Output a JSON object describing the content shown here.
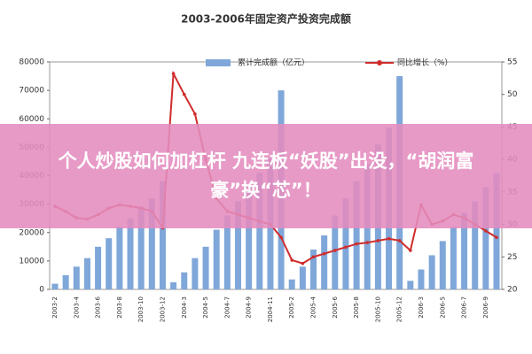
{
  "chart_data": {
    "type": "bar-line",
    "title": "2003-2006年固定资产投资完成额",
    "categories": [
      "2003-2",
      null,
      "2003-4",
      null,
      "2003-6",
      null,
      "2003-8",
      null,
      "2003-10",
      null,
      "2003-12",
      null,
      "2004-3",
      null,
      "2004-5",
      null,
      "2004-7",
      null,
      "2004-9",
      null,
      "2004-11",
      null,
      "2005-2",
      null,
      "2005-4",
      null,
      "2005-6",
      null,
      "2005-8",
      null,
      "2005-10",
      null,
      "2005-12",
      null,
      "2006-3",
      null,
      "2006-5",
      null,
      "2006-7",
      null,
      "2006-9",
      null
    ],
    "series": [
      {
        "name": "累计完成额（亿元）",
        "color": "#7fa7d9",
        "type": "bar",
        "values": [
          2000,
          5000,
          8000,
          11000,
          15000,
          18000,
          22000,
          25000,
          29000,
          32000,
          38000,
          2500,
          6000,
          11000,
          15000,
          21000,
          26000,
          31000,
          36000,
          41000,
          46000,
          70000,
          3500,
          8000,
          14000,
          19000,
          26000,
          32000,
          38000,
          44000,
          51000,
          57000,
          75000,
          3000,
          7000,
          12000,
          17000,
          22000,
          27000,
          31000,
          36000,
          41000
        ]
      },
      {
        "name": "同比增长（%）",
        "color": "#d02c2c",
        "type": "line",
        "axis": "y2",
        "values": [
          32.8,
          32,
          31,
          30.8,
          31.5,
          32.5,
          33,
          32.8,
          32.5,
          32,
          29.5,
          53.2,
          50,
          47,
          40,
          34,
          32,
          31.5,
          31,
          30.5,
          30,
          28,
          24.5,
          24,
          25,
          25.5,
          26,
          26.5,
          27,
          27.2,
          27.5,
          27.8,
          27.5,
          26,
          33,
          30,
          30.5,
          31.5,
          31,
          30,
          29,
          28
        ]
      }
    ],
    "ylim": [
      0,
      80000
    ],
    "yticks": [
      0,
      10000,
      20000,
      30000,
      40000,
      50000,
      60000,
      70000,
      80000
    ],
    "y2lim": [
      20,
      55
    ],
    "y2ticks": [
      20,
      25,
      30,
      35,
      40,
      45,
      50,
      55
    ]
  },
  "banner": {
    "title": "个人炒股如何加杠杆 九连板“妖股”出没，“胡润富豪”换“芯”！"
  }
}
